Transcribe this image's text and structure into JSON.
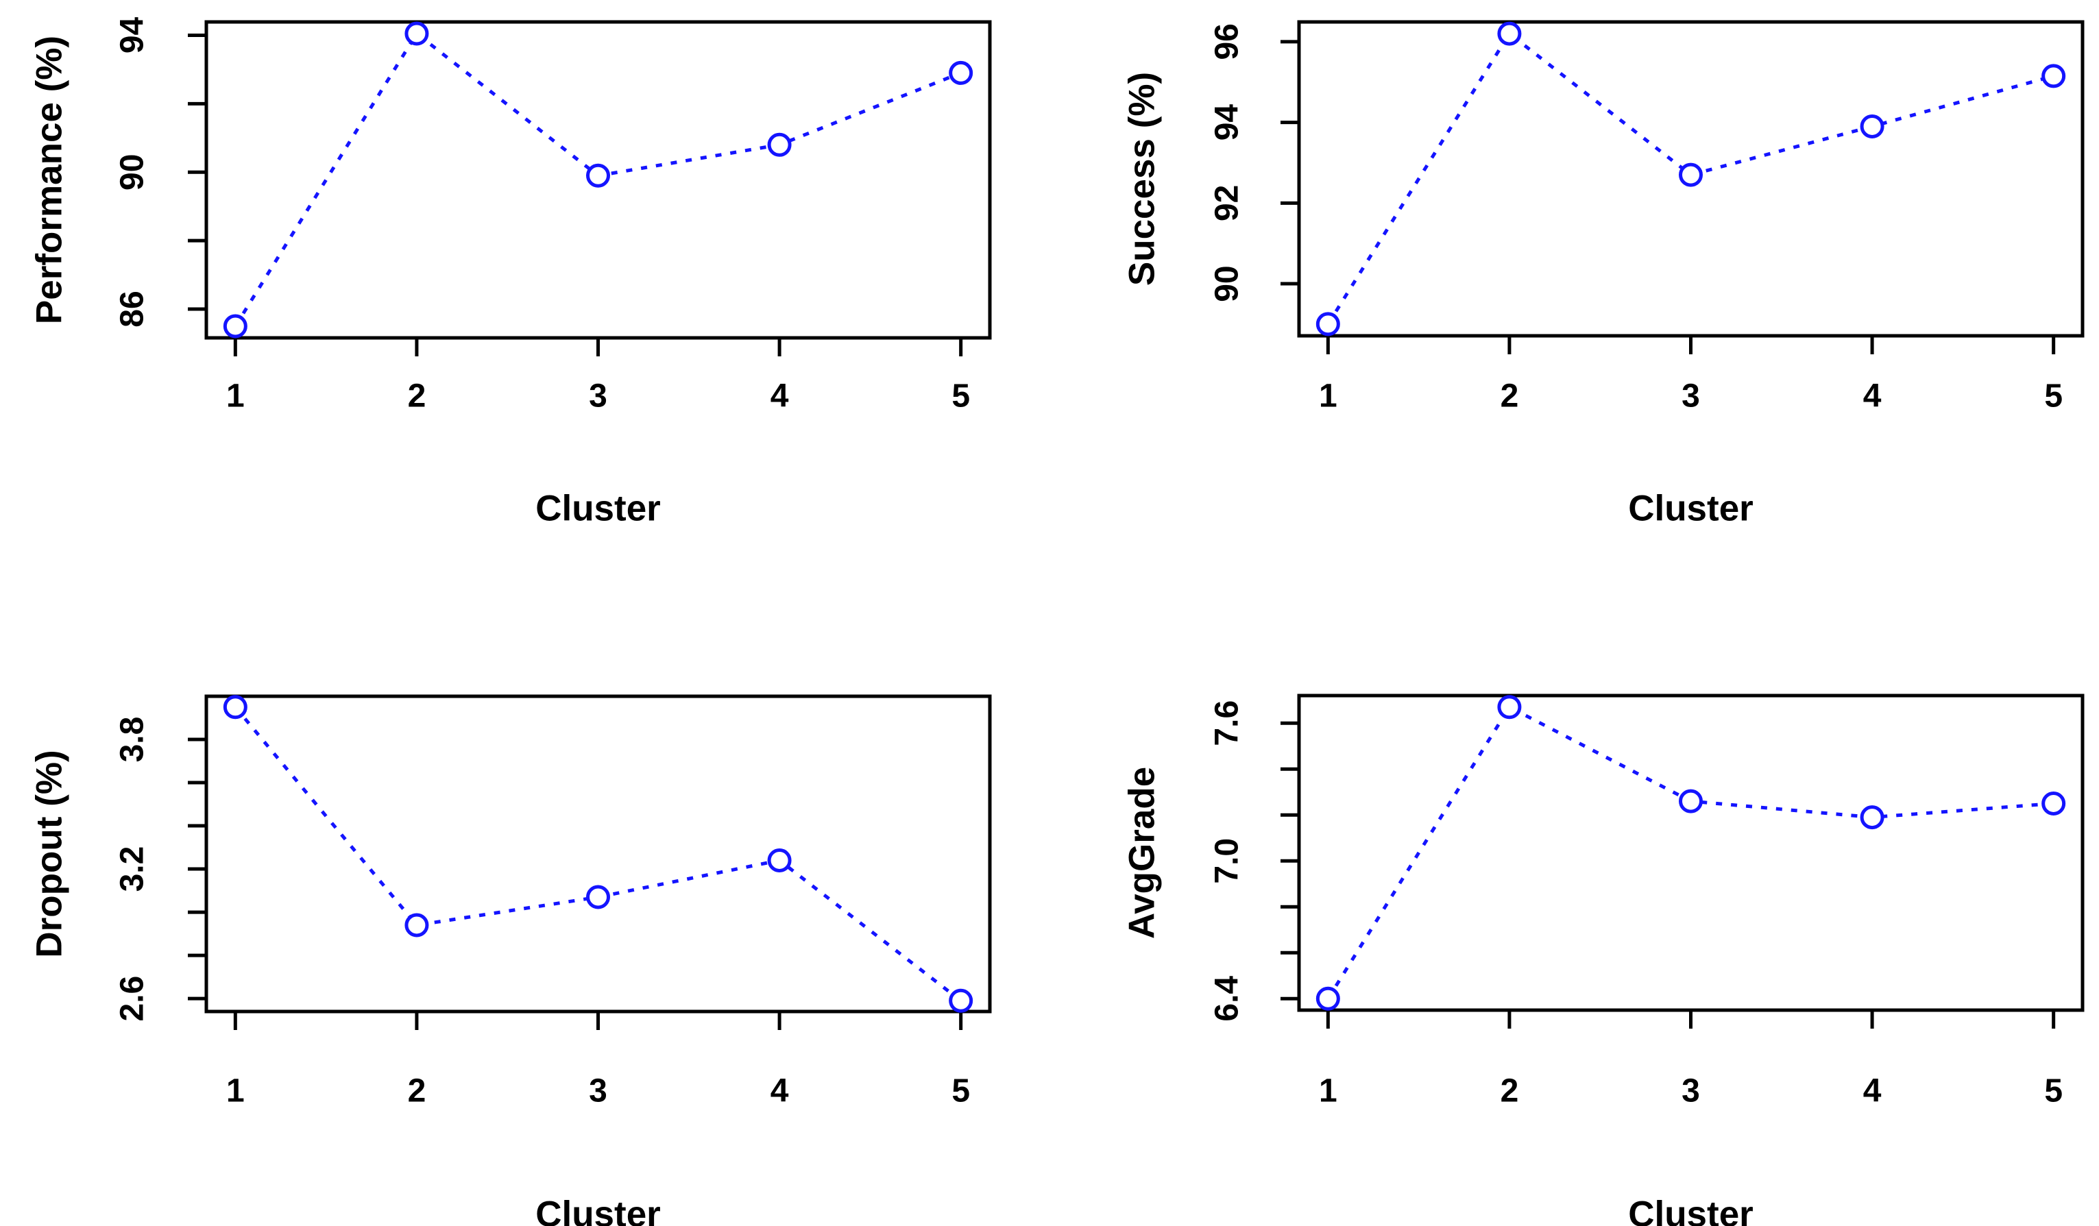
{
  "figure": {
    "background": "#ffffff",
    "axis_color": "#000000",
    "series_color": "#1414ff",
    "marker": "open-circle",
    "line_style": "dotted",
    "panel_count": 4
  },
  "chart_data": [
    {
      "type": "line",
      "title": "",
      "xlabel": "Cluster",
      "ylabel": "Performance (%)",
      "x": [
        1,
        2,
        3,
        4,
        5
      ],
      "xtick_labels": [
        "1",
        "2",
        "3",
        "4",
        "5"
      ],
      "values": [
        85.5,
        94.05,
        89.9,
        90.8,
        92.9
      ],
      "xlim": [
        0.84,
        5.16
      ],
      "ylim": [
        85.16,
        94.39
      ],
      "grid": false,
      "yticks": [
        {
          "value": 86,
          "label": "86"
        },
        {
          "value": 88,
          "label": ""
        },
        {
          "value": 90,
          "label": "90"
        },
        {
          "value": 92,
          "label": ""
        },
        {
          "value": 94,
          "label": "94"
        }
      ]
    },
    {
      "type": "line",
      "title": "",
      "xlabel": "Cluster",
      "ylabel": "Success (%)",
      "x": [
        1,
        2,
        3,
        4,
        5
      ],
      "xtick_labels": [
        "1",
        "2",
        "3",
        "4",
        "5"
      ],
      "values": [
        89.0,
        96.2,
        92.7,
        93.9,
        95.15
      ],
      "xlim": [
        0.84,
        5.16
      ],
      "ylim": [
        88.71,
        96.49
      ],
      "grid": false,
      "yticks": [
        {
          "value": 90,
          "label": "90"
        },
        {
          "value": 92,
          "label": "92"
        },
        {
          "value": 94,
          "label": "94"
        },
        {
          "value": 96,
          "label": "96"
        }
      ]
    },
    {
      "type": "line",
      "title": "",
      "xlabel": "Cluster",
      "ylabel": "Dropout (%)",
      "x": [
        1,
        2,
        3,
        4,
        5
      ],
      "xtick_labels": [
        "1",
        "2",
        "3",
        "4",
        "5"
      ],
      "values": [
        3.95,
        2.94,
        3.07,
        3.24,
        2.59
      ],
      "xlim": [
        0.84,
        5.16
      ],
      "ylim": [
        2.54,
        4.0
      ],
      "grid": false,
      "yticks": [
        {
          "value": 2.6,
          "label": "2.6"
        },
        {
          "value": 2.8,
          "label": ""
        },
        {
          "value": 3.0,
          "label": ""
        },
        {
          "value": 3.2,
          "label": "3.2"
        },
        {
          "value": 3.4,
          "label": ""
        },
        {
          "value": 3.6,
          "label": ""
        },
        {
          "value": 3.8,
          "label": "3.8"
        }
      ]
    },
    {
      "type": "line",
      "title": "",
      "xlabel": "Cluster",
      "ylabel": "AvgGrade",
      "x": [
        1,
        2,
        3,
        4,
        5
      ],
      "xtick_labels": [
        "1",
        "2",
        "3",
        "4",
        "5"
      ],
      "values": [
        6.4,
        7.67,
        7.26,
        7.19,
        7.25
      ],
      "xlim": [
        0.84,
        5.16
      ],
      "ylim": [
        6.35,
        7.72
      ],
      "grid": false,
      "yticks": [
        {
          "value": 6.4,
          "label": "6.4"
        },
        {
          "value": 6.6,
          "label": ""
        },
        {
          "value": 6.8,
          "label": ""
        },
        {
          "value": 7.0,
          "label": "7.0"
        },
        {
          "value": 7.2,
          "label": ""
        },
        {
          "value": 7.4,
          "label": ""
        },
        {
          "value": 7.6,
          "label": "7.6"
        }
      ]
    }
  ]
}
